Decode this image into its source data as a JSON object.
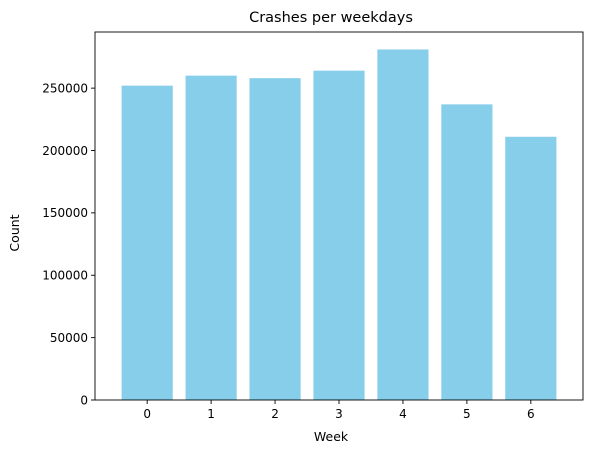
{
  "chart_data": {
    "type": "bar",
    "title": "Crashes per weekdays",
    "xlabel": "Week",
    "ylabel": "Count",
    "categories": [
      "0",
      "1",
      "2",
      "3",
      "4",
      "5",
      "6"
    ],
    "values": [
      252000,
      260000,
      258000,
      264000,
      281000,
      237000,
      211000
    ],
    "yticks": [
      0,
      50000,
      100000,
      150000,
      200000,
      250000
    ],
    "ytick_labels": [
      "0",
      "50000",
      "100000",
      "150000",
      "200000",
      "250000"
    ],
    "ylim": [
      0,
      295000
    ],
    "bar_color": "#87ceeb",
    "grid": false,
    "legend": "none"
  }
}
